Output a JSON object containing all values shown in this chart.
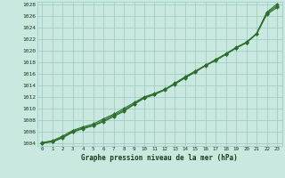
{
  "xlabel": "Graphe pression niveau de la mer (hPa)",
  "xlim": [
    -0.5,
    23.5
  ],
  "ylim": [
    1003.5,
    1028.5
  ],
  "yticks": [
    1004,
    1006,
    1008,
    1010,
    1012,
    1014,
    1016,
    1018,
    1020,
    1022,
    1024,
    1026,
    1028
  ],
  "xticks": [
    0,
    1,
    2,
    3,
    4,
    5,
    6,
    7,
    8,
    9,
    10,
    11,
    12,
    13,
    14,
    15,
    16,
    17,
    18,
    19,
    20,
    21,
    22,
    23
  ],
  "background_color": "#c8e8e0",
  "grid_color": "#9ec8c0",
  "line_color": "#2d6e2d",
  "line1": [
    1004.1,
    1004.4,
    1005.2,
    1006.2,
    1006.8,
    1007.3,
    1008.2,
    1009.0,
    1010.0,
    1011.0,
    1012.0,
    1012.6,
    1013.3,
    1014.2,
    1015.3,
    1016.3,
    1017.5,
    1018.3,
    1019.4,
    1020.5,
    1021.4,
    1023.0,
    1026.7,
    1028.1
  ],
  "line2": [
    1004.0,
    1004.3,
    1005.0,
    1006.0,
    1006.6,
    1007.1,
    1007.9,
    1008.8,
    1009.7,
    1010.8,
    1011.9,
    1012.5,
    1013.3,
    1014.4,
    1015.5,
    1016.5,
    1017.5,
    1018.5,
    1019.5,
    1020.6,
    1021.5,
    1023.0,
    1026.5,
    1027.8
  ],
  "line3": [
    1004.0,
    1004.2,
    1004.9,
    1005.9,
    1006.5,
    1007.0,
    1007.7,
    1008.6,
    1009.5,
    1010.7,
    1011.8,
    1012.4,
    1013.2,
    1014.3,
    1015.4,
    1016.4,
    1017.4,
    1018.4,
    1019.4,
    1020.5,
    1021.4,
    1022.9,
    1026.3,
    1027.5
  ],
  "marker": "D",
  "markersize": 2.0,
  "linewidth": 0.8
}
